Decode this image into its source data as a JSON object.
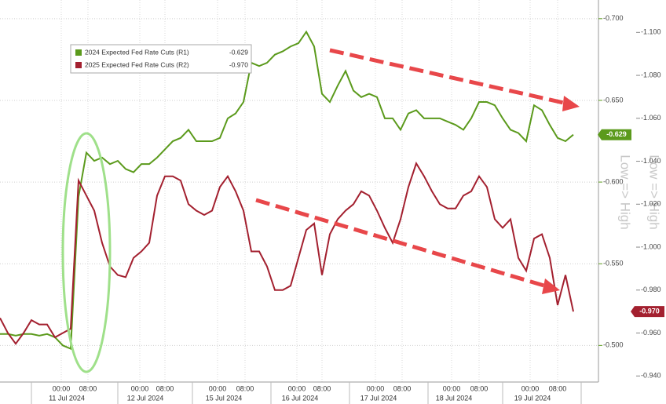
{
  "chart_data": {
    "type": "line",
    "xlim": [
      0,
      76
    ],
    "x": [
      0,
      1,
      2,
      3,
      4,
      5,
      6,
      7,
      8,
      9,
      10,
      11,
      12,
      13,
      14,
      15,
      16,
      17,
      18,
      19,
      20,
      21,
      22,
      23,
      24,
      25,
      26,
      27,
      28,
      29,
      30,
      31,
      32,
      33,
      34,
      35,
      36,
      37,
      38,
      39,
      40,
      41,
      42,
      43,
      44,
      45,
      46,
      47,
      48,
      49,
      50,
      51,
      52,
      53,
      54,
      55,
      56,
      57,
      58,
      59,
      60,
      61,
      62,
      63,
      64,
      65,
      66,
      67,
      68,
      69,
      70,
      71,
      72,
      73
    ],
    "xticks": [
      {
        "value": 7.8,
        "label": "00:00"
      },
      {
        "value": 11.2,
        "label": "08:00"
      },
      {
        "value": 17.8,
        "label": "00:00"
      },
      {
        "value": 21,
        "label": "08:00"
      },
      {
        "value": 27.7,
        "label": "00:00"
      },
      {
        "value": 31.2,
        "label": "08:00"
      },
      {
        "value": 37.8,
        "label": "00:00"
      },
      {
        "value": 41,
        "label": "08:00"
      },
      {
        "value": 47.8,
        "label": "00:00"
      },
      {
        "value": 51.2,
        "label": "08:00"
      },
      {
        "value": 57.5,
        "label": "00:00"
      },
      {
        "value": 61,
        "label": "08:00"
      },
      {
        "value": 67.5,
        "label": "00:00"
      },
      {
        "value": 71,
        "label": "08:00"
      }
    ],
    "day_labels": [
      {
        "value": 8.5,
        "label": "11 Jul 2024"
      },
      {
        "value": 18.5,
        "label": "12 Jul 2024"
      },
      {
        "value": 28.5,
        "label": "15 Jul 2024"
      },
      {
        "value": 38.2,
        "label": "16 Jul 2024"
      },
      {
        "value": 48.2,
        "label": "17 Jul 2024"
      },
      {
        "value": 57.8,
        "label": "18 Jul 2024"
      },
      {
        "value": 67.8,
        "label": "19 Jul 2024"
      }
    ],
    "ylim": [
      -0.48,
      -0.71
    ],
    "yticks": [
      {
        "value": -0.7,
        "label": "-0.700"
      },
      {
        "value": -0.65,
        "label": "-0.650"
      },
      {
        "value": -0.6,
        "label": "-0.600"
      },
      {
        "value": -0.55,
        "label": "-0.550"
      },
      {
        "value": -0.5,
        "label": "-0.500"
      }
    ],
    "y2lim": [
      -0.939,
      -1.114
    ],
    "y2ticks": [
      {
        "value": -1.1,
        "label": "-1.100"
      },
      {
        "value": -1.08,
        "label": "-1.080"
      },
      {
        "value": -1.06,
        "label": "-1.060"
      },
      {
        "value": -1.04,
        "label": "-1.040"
      },
      {
        "value": -1.02,
        "label": "-1.020"
      },
      {
        "value": -1.0,
        "label": "-1.000"
      },
      {
        "value": -0.98,
        "label": "-0.980"
      },
      {
        "value": -0.96,
        "label": "-0.960"
      },
      {
        "value": -0.94,
        "label": "-0.940"
      }
    ],
    "grid": true,
    "annotations": [
      "Low => High",
      "Low => High"
    ],
    "series": [
      {
        "name": "2024 Expected Fed Rate Cuts (R1)",
        "color": "#5b9a1c",
        "last_label": "-0.629",
        "values": [
          -0.507,
          -0.507,
          -0.506,
          -0.507,
          -0.507,
          -0.506,
          -0.507,
          -0.505,
          -0.5,
          -0.498,
          -0.591,
          -0.618,
          -0.613,
          -0.615,
          -0.611,
          -0.613,
          -0.608,
          -0.606,
          -0.611,
          -0.611,
          -0.615,
          -0.62,
          -0.625,
          -0.627,
          -0.632,
          -0.625,
          -0.625,
          -0.625,
          -0.627,
          -0.639,
          -0.642,
          -0.649,
          -0.673,
          -0.671,
          -0.673,
          -0.678,
          -0.68,
          -0.683,
          -0.685,
          -0.692,
          -0.683,
          -0.654,
          -0.649,
          -0.659,
          -0.668,
          -0.656,
          -0.652,
          -0.654,
          -0.652,
          -0.639,
          -0.639,
          -0.632,
          -0.642,
          -0.644,
          -0.639,
          -0.639,
          -0.639,
          -0.637,
          -0.635,
          -0.632,
          -0.639,
          -0.649,
          -0.649,
          -0.647,
          -0.639,
          -0.632,
          -0.63,
          -0.625,
          -0.647,
          -0.644,
          -0.635,
          -0.627,
          -0.625,
          -0.629
        ]
      },
      {
        "name": "2025 Expected Fed Rate Cuts (R2)",
        "color": "#a3202f",
        "axis": "y2",
        "last_label": "-0.970",
        "values": [
          -0.967,
          -0.96,
          -0.955,
          -0.96,
          -0.966,
          -0.964,
          -0.964,
          -0.958,
          -0.96,
          -0.962,
          -1.031,
          -1.024,
          -1.017,
          -1.002,
          -0.991,
          -0.987,
          -0.986,
          -0.995,
          -0.998,
          -1.002,
          -1.024,
          -1.033,
          -1.033,
          -1.031,
          -1.02,
          -1.017,
          -1.015,
          -1.017,
          -1.028,
          -1.033,
          -1.026,
          -1.017,
          -0.998,
          -0.998,
          -0.991,
          -0.98,
          -0.98,
          -0.982,
          -0.995,
          -1.008,
          -1.011,
          -0.987,
          -1.006,
          -1.013,
          -1.017,
          -1.02,
          -1.026,
          -1.024,
          -1.017,
          -1.009,
          -1.002,
          -1.013,
          -1.028,
          -1.039,
          -1.033,
          -1.026,
          -1.02,
          -1.018,
          -1.018,
          -1.024,
          -1.026,
          -1.033,
          -1.028,
          -1.013,
          -1.009,
          -1.013,
          -0.995,
          -0.989,
          -1.004,
          -1.006,
          -0.995,
          -0.973,
          -0.987,
          -0.97
        ]
      }
    ]
  }
}
